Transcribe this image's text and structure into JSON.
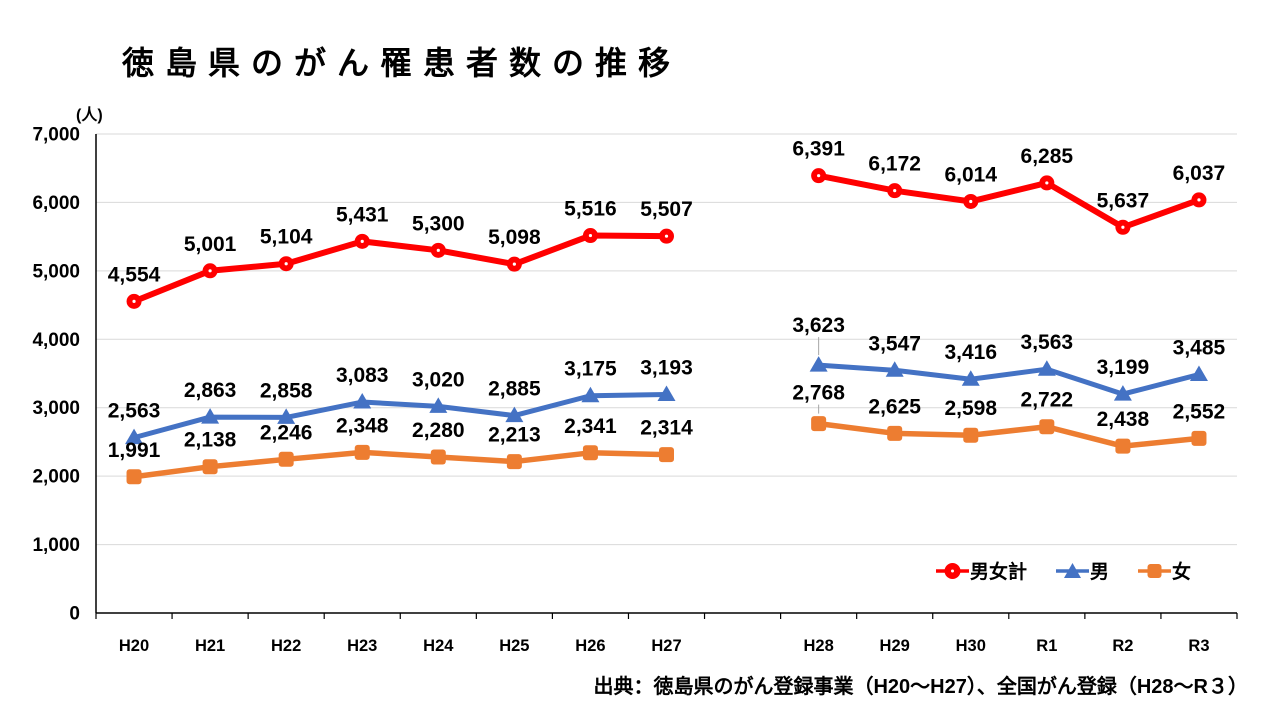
{
  "title": "徳島県のがん罹患者数の推移",
  "unit_label": "(人)",
  "source": "出典：徳島県のがん登録事業（H20～H27）、全国がん登録（H28～R３）",
  "chart_data": {
    "type": "line",
    "title": "徳島県のがん罹患者数の推移",
    "ylabel": "(人)",
    "categories": [
      "H20",
      "H21",
      "H22",
      "H23",
      "H24",
      "H25",
      "H26",
      "H27",
      "",
      "H28",
      "H29",
      "H30",
      "R1",
      "R2",
      "R3"
    ],
    "series": [
      {
        "id": "total",
        "name": "男女計",
        "marker": "circle",
        "color": "#FF0000",
        "line_width": 6,
        "values": [
          4554,
          5001,
          5104,
          5431,
          5300,
          5098,
          5516,
          5507,
          null,
          6391,
          6172,
          6014,
          6285,
          5637,
          6037
        ]
      },
      {
        "id": "male",
        "name": "男",
        "marker": "triangle",
        "color": "#4472C4",
        "line_width": 5,
        "values": [
          2563,
          2863,
          2858,
          3083,
          3020,
          2885,
          3175,
          3193,
          null,
          3623,
          3547,
          3416,
          3563,
          3199,
          3485
        ]
      },
      {
        "id": "female",
        "name": "女",
        "marker": "square",
        "color": "#ED7D31",
        "line_width": 5.5,
        "values": [
          1991,
          2138,
          2246,
          2348,
          2280,
          2213,
          2341,
          2314,
          null,
          2768,
          2625,
          2598,
          2722,
          2438,
          2552
        ]
      }
    ],
    "ylim": [
      0,
      7000
    ],
    "ytick_step": 1000,
    "ytick_labels": [
      "0",
      "1,000",
      "2,000",
      "3,000",
      "4,000",
      "5,000",
      "6,000",
      "7,000"
    ],
    "grid": true,
    "data_labels": true,
    "legend_position": "inside-bottom-right",
    "colors": {
      "grid": "#D9D9D9",
      "axis": "#000000",
      "label": "#000000",
      "leader": "#A6A6A6"
    },
    "special_labels": [
      {
        "series": 1,
        "index": 9,
        "dy": -33,
        "leader": true
      },
      {
        "series": 2,
        "index": 9,
        "dy": -24,
        "leader": true
      }
    ]
  }
}
